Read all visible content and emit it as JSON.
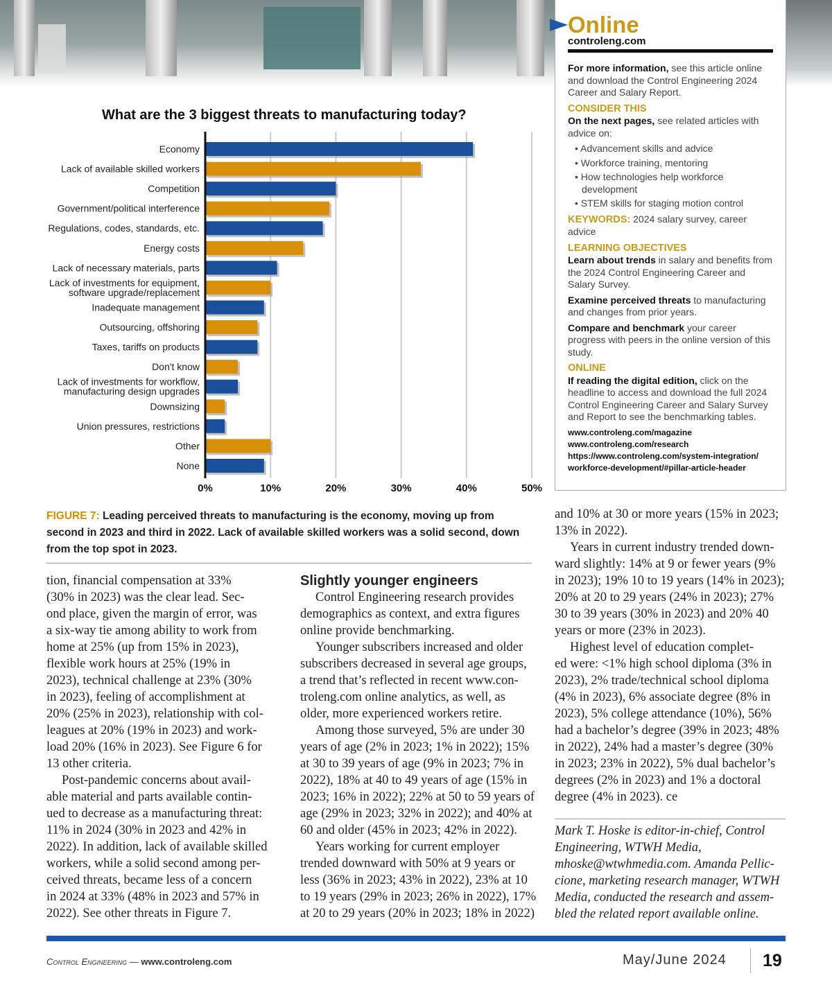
{
  "chart_data": {
    "type": "bar",
    "orientation": "horizontal",
    "title": "What are the 3 biggest threats to manufacturing today?",
    "categories": [
      "Economy",
      "Lack of available skilled workers",
      "Competition",
      "Government/political interference",
      "Regulations, codes, standards, etc.",
      "Energy costs",
      "Lack of necessary materials, parts",
      "Lack of investments for equipment,\nsoftware upgrade/replacement",
      "Inadequate management",
      "Outsourcing, offshoring",
      "Taxes, tariffs on products",
      "Don't know",
      "Lack of investments for workflow,\nmanufacturing design upgrades",
      "Downsizing",
      "Union pressures, restrictions",
      "Other",
      "None"
    ],
    "values": [
      41,
      33,
      20,
      19,
      18,
      15,
      11,
      10,
      9,
      8,
      8,
      5,
      5,
      3,
      3,
      10,
      9
    ],
    "unit": "%",
    "xlim": [
      0,
      50
    ],
    "ticks": [
      "0%",
      "10%",
      "20%",
      "30%",
      "40%",
      "50%"
    ],
    "grid": true,
    "colors": [
      "#1a4f9c",
      "#d8900a"
    ]
  },
  "caption": {
    "label": "FIGURE 7:",
    "text": " Leading perceived threats to manufacturing is the economy, moving up from second in 2023 and third in 2022. Lack of available skilled workers was a solid second, down from the top spot in 2023."
  },
  "sidebar": {
    "logo": "Online",
    "logo_url": "controleng.com",
    "p1_bold": "For more information,",
    "p1": " see this article online and download the Control Engineering 2024 Career and Salary Report.",
    "h_consider": "CONSIDER THIS",
    "p2_bold": "On the next pages,",
    "p2": " see related articles with advice on:",
    "bullets": [
      "• Advancement skills and advice",
      "• Workforce training, mentoring",
      "• How technologies help workforce development",
      "• STEM skills for staging motion control"
    ],
    "h_keywords": "KEYWORDS:",
    "keywords": " 2024 salary survey, career advice",
    "h_learning": "LEARNING OBJECTIVES",
    "lo": [
      {
        "b": "Learn about trends",
        "t": " in salary and benefits from the 2024 Control Engineering Career and Salary Survey."
      },
      {
        "b": "Examine perceived threats",
        "t": " to manufacturing and changes from prior years."
      },
      {
        "b": "Compare and benchmark",
        "t": " your career progress with peers in the online version of this study."
      }
    ],
    "h_online": "ONLINE",
    "p3_bold": "If reading the digital edition,",
    "p3": " click on the headline to access and download the full 2024 Control Engineering Career and Salary Survey and Report to see the benchmarking tables.",
    "urls": [
      "www.controleng.com/magazine",
      "www.controleng.com/research",
      "https://www.controleng.com/system-integration/ workforce-development/#pillar-article-header"
    ]
  },
  "col1": [
    "tion, financial compensation at 33%",
    "(30% in 2023) was the clear lead. Sec-",
    "ond place, given the margin of error, was",
    "a six-way tie among ability to work from",
    "home at 25% (up from 15% in 2023),",
    "flexible work hours at 25% (19% in",
    "2023), technical challenge at 23% (30%",
    "in 2023), feeling of accomplishment at",
    "20% (25% in 2023), relationship with col-",
    "leagues at 20% (19% in 2023) and work-",
    "load 20% (16% in 2023). See Figure 6 for",
    "13 other criteria.",
    "Post-pandemic concerns about avail-",
    "able material and parts available contin-",
    "ued to decrease as a manufacturing threat:",
    "11% in 2024 (30% in 2023 and 42% in",
    "2022). In addition, lack of available skilled",
    "workers, while a solid second among per-",
    "ceived threats, became less of a concern",
    "in 2024 at 33% (48% in 2023 and 57% in",
    "2022). See other threats in Figure 7."
  ],
  "col2_heading": "Slightly younger engineers",
  "col2": [
    "Control Engineering research provides",
    "demographics as context, and extra figures",
    "online provide benchmarking.",
    "Younger subscribers increased and older",
    "subscribers decreased in several age groups,",
    "a trend that’s reflected in recent www.con-",
    "troleng.com online analytics, as well, as",
    "older, more experienced workers retire.",
    "Among those surveyed, 5% are under 30",
    "years of age (2% in 2023; 1% in 2022); 15%",
    "at 30 to 39 years of age (9% in 2023; 7% in",
    "2022), 18% at 40 to 49 years of age (15% in",
    "2023; 16% in 2022); 22% at 50 to 59 years of",
    "age (29% in 2023; 32% in 2022); and 40% at",
    "60 and older (45% in 2023; 42% in 2022).",
    "Years working for current employer",
    "trended downward with 50% at 9 years or",
    "less (36% in 2023; 43% in 2022), 23% at 10",
    "to 19 years (29% in 2023; 26% in 2022), 17%",
    "at 20 to 29 years (20% in 2023; 18% in 2022)"
  ],
  "col3": [
    "and 10% at 30 or more years (15% in 2023;",
    "13% in 2022).",
    "Years in current industry trended down-",
    "ward slightly: 14% at 9 or fewer years (9%",
    "in 2023); 19% 10 to 19 years (14% in 2023);",
    "20% at 20 to 29 years (24% in 2023); 27%",
    "30 to 39 years (30% in 2023) and 20% 40",
    "years or more (23% in 2023).",
    "Highest level of education complet-",
    "ed were: <1% high school diploma (3% in",
    "2023), 2% trade/technical school diploma",
    "(4% in 2023), 6% associate degree (8% in",
    "2023), 5% college attendance (10%), 56%",
    "had a bachelor’s degree (39% in 2023; 48%",
    "in 2022), 24% had a master’s degree (30%",
    "in 2023; 23% in 2022), 5% dual bachelor’s",
    "degrees (2% in 2023) and 1% a doctoral",
    "degree (4% in 2023). ce"
  ],
  "bio": [
    "Mark T. Hoske is editor-in-chief, Control",
    "Engineering, WTWH Media,",
    "mhoske@wtwhmedia.com. Amanda Pellic-",
    "cione, marketing research manager, WTWH",
    "Media, conducted the research and assem-",
    "bled the related report available online."
  ],
  "footer": {
    "pub": "Control Engineering",
    "dash": " — ",
    "url": "www.controleng.com",
    "date": "May/June 2024",
    "page": "19"
  }
}
